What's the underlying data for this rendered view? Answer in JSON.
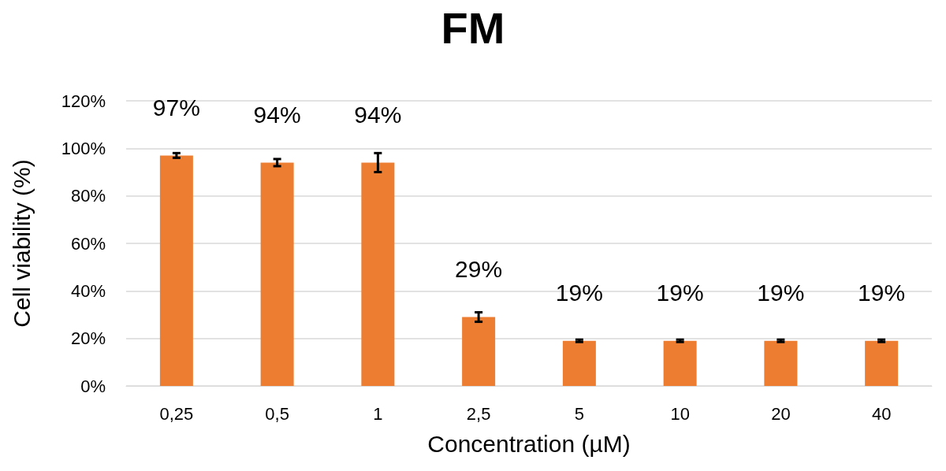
{
  "chart_data": {
    "type": "bar",
    "title": "FM",
    "xlabel": "Concentration (µM)",
    "ylabel": "Cell viability (%)",
    "categories": [
      "0,25",
      "0,5",
      "1",
      "2,5",
      "5",
      "10",
      "20",
      "40"
    ],
    "values": [
      97,
      94,
      94,
      29,
      19,
      19,
      19,
      19
    ],
    "value_labels": [
      "97%",
      "94%",
      "94%",
      "29%",
      "19%",
      "19%",
      "19%",
      "19%"
    ],
    "errors": [
      1,
      1.5,
      4,
      2,
      0.5,
      0.5,
      0.5,
      0.5
    ],
    "color": "#ed7d31",
    "ylim": [
      0,
      120
    ],
    "yticks": [
      {
        "value": 0,
        "label": "0%"
      },
      {
        "value": 20,
        "label": "20%"
      },
      {
        "value": 40,
        "label": "40%"
      },
      {
        "value": 60,
        "label": "60%"
      },
      {
        "value": 80,
        "label": "80%"
      },
      {
        "value": 100,
        "label": "100%"
      },
      {
        "value": 120,
        "label": "120%"
      }
    ],
    "grid": "y"
  }
}
